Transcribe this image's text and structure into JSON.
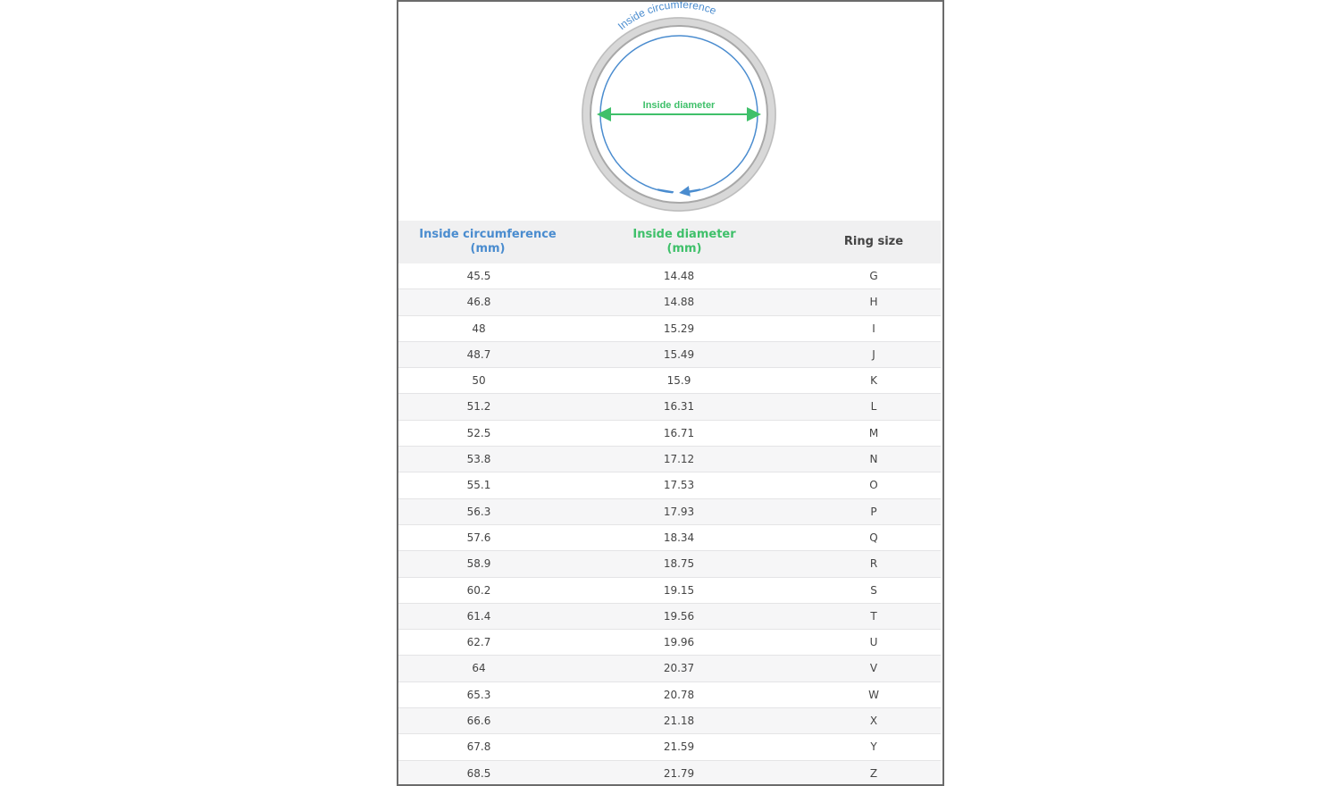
{
  "diagram": {
    "circumference_label": "Inside circumference",
    "diameter_label": "Inside diameter",
    "colors": {
      "circumference": "#4a8ccf",
      "diameter": "#3fc06a",
      "ring": "#c8c8c8"
    }
  },
  "table": {
    "headers": [
      {
        "label": "Inside circumference\n(mm)",
        "color": "#4a8ccf"
      },
      {
        "label": "Inside diameter\n(mm)",
        "color": "#3fc06a"
      },
      {
        "label": "Ring size",
        "color": "#444444"
      }
    ],
    "rows": [
      [
        "45.5",
        "14.48",
        "G"
      ],
      [
        "46.8",
        "14.88",
        "H"
      ],
      [
        "48",
        "15.29",
        "I"
      ],
      [
        "48.7",
        "15.49",
        "J"
      ],
      [
        "50",
        "15.9",
        "K"
      ],
      [
        "51.2",
        "16.31",
        "L"
      ],
      [
        "52.5",
        "16.71",
        "M"
      ],
      [
        "53.8",
        "17.12",
        "N"
      ],
      [
        "55.1",
        "17.53",
        "O"
      ],
      [
        "56.3",
        "17.93",
        "P"
      ],
      [
        "57.6",
        "18.34",
        "Q"
      ],
      [
        "58.9",
        "18.75",
        "R"
      ],
      [
        "60.2",
        "19.15",
        "S"
      ],
      [
        "61.4",
        "19.56",
        "T"
      ],
      [
        "62.7",
        "19.96",
        "U"
      ],
      [
        "64",
        "20.37",
        "V"
      ],
      [
        "65.3",
        "20.78",
        "W"
      ],
      [
        "66.6",
        "21.18",
        "X"
      ],
      [
        "67.8",
        "21.59",
        "Y"
      ],
      [
        "68.5",
        "21.79",
        "Z"
      ]
    ]
  }
}
